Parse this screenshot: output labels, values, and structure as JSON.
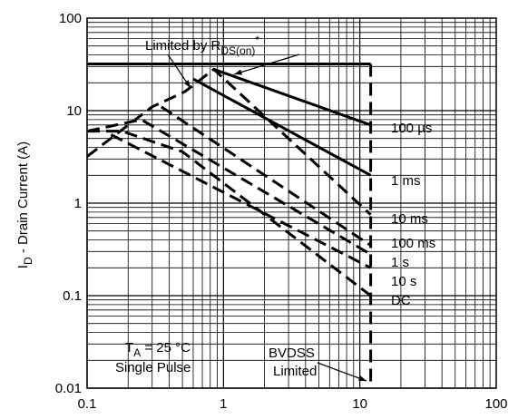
{
  "chart_data": {
    "type": "line",
    "title": "",
    "xlabel": "",
    "ylabel": {
      "main": "I",
      "sub": "D",
      "rest": " - Drain Current (A)"
    },
    "xscale": "log",
    "yscale": "log",
    "xlim": [
      0.1,
      100
    ],
    "ylim": [
      0.01,
      100
    ],
    "xticks": [
      "0.1",
      "1",
      "10",
      "100"
    ],
    "yticks": [
      "0.01",
      "0.1",
      "1",
      "10",
      "100"
    ],
    "grid": true,
    "series": [
      {
        "name": "100 µs",
        "style": "solid",
        "x": [
          0.1,
          12
        ],
        "y": [
          32,
          32
        ]
      },
      {
        "name": "100 µs",
        "style": "solid",
        "x": [
          0.85,
          12
        ],
        "y": [
          28,
          7
        ]
      },
      {
        "name": "1 ms",
        "style": "solid",
        "x": [
          0.6,
          12
        ],
        "y": [
          22,
          2.0
        ]
      },
      {
        "name": "10 ms",
        "style": "dashed",
        "x": [
          0.1,
          0.3,
          0.52,
          0.85,
          12
        ],
        "y": [
          3.2,
          11,
          16,
          28,
          0.75
        ]
      },
      {
        "name": "100 ms",
        "style": "dashed",
        "x": [
          0.35,
          12
        ],
        "y": [
          11,
          0.35
        ]
      },
      {
        "name": "1 s",
        "style": "dashed",
        "x": [
          0.1,
          0.25,
          12
        ],
        "y": [
          6,
          8,
          0.28
        ]
      },
      {
        "name": "10 s",
        "style": "dashed",
        "x": [
          0.15,
          12
        ],
        "y": [
          5.5,
          0.2
        ]
      },
      {
        "name": "DC",
        "style": "dashed",
        "x": [
          0.1,
          0.18,
          0.5,
          12
        ],
        "y": [
          6,
          6,
          3.6,
          0.1
        ]
      },
      {
        "name": "BVDSS Limited",
        "style": "dashed",
        "x": [
          12,
          12
        ],
        "y": [
          32,
          0.01
        ]
      }
    ],
    "annotations": {
      "limited_by": {
        "main": "Limited by R",
        "sub": "DS(on)",
        "sup": "*"
      },
      "ta": {
        "main": "T",
        "sub": "A",
        "rest": " = 25 °C"
      },
      "single_pulse": "Single Pulse",
      "bvdss": "BVDSS",
      "bvdss_limited": "Limited"
    },
    "curve_labels": [
      "100 µs",
      "1 ms",
      "10 ms",
      "100 ms",
      "1 s",
      "10 s",
      "DC"
    ]
  }
}
